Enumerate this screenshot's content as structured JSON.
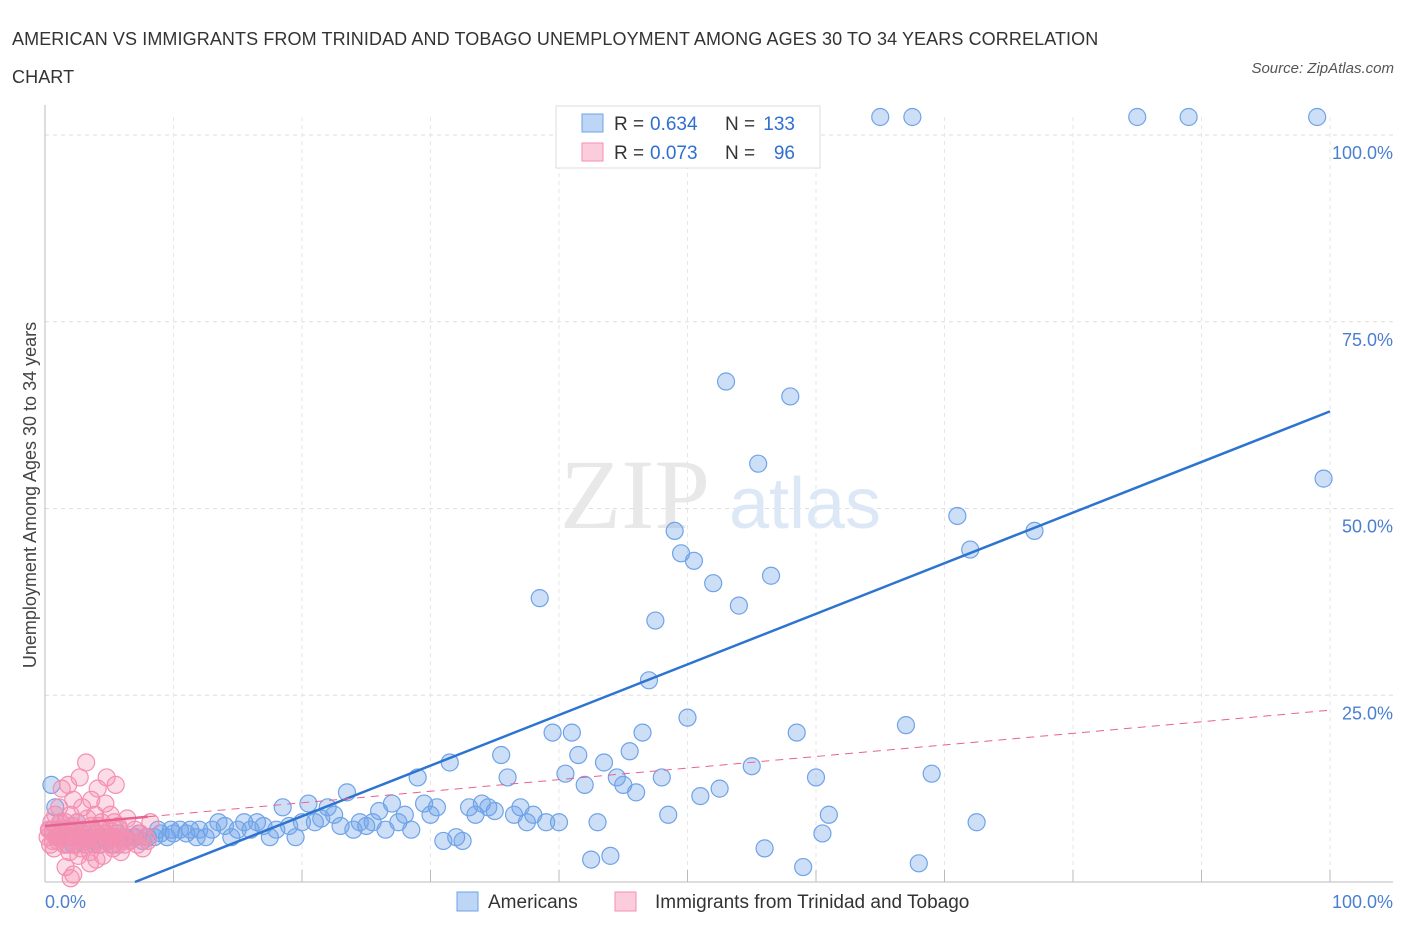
{
  "title": "AMERICAN VS IMMIGRANTS FROM TRINIDAD AND TOBAGO UNEMPLOYMENT AMONG AGES 30 TO 34 YEARS CORRELATION CHART",
  "source": "Source: ZipAtlas.com",
  "watermark": {
    "zip": "ZIP",
    "atlas": "atlas"
  },
  "chart_data": {
    "type": "scatter",
    "ylabel": "Unemployment Among Ages 30 to 34 years",
    "xlim": [
      0,
      100
    ],
    "ylim": [
      0,
      100
    ],
    "x_tick_labels": [
      "0.0%",
      "100.0%"
    ],
    "y_ticks": [
      25,
      50,
      75,
      100
    ],
    "y_tick_labels": [
      "25.0%",
      "50.0%",
      "75.0%",
      "100.0%"
    ],
    "grid": true,
    "legend_position": "top-center",
    "series": [
      {
        "name": "Americans",
        "color": "#6fa3e8",
        "line_color": "#2d74d0",
        "R": "0.634",
        "N": "133",
        "trend": {
          "x0": 7,
          "y0": 0,
          "x1": 100,
          "y1": 63
        },
        "points": [
          [
            0.5,
            13
          ],
          [
            0.6,
            7
          ],
          [
            0.8,
            10
          ],
          [
            1,
            6
          ],
          [
            1.2,
            8
          ],
          [
            1.5,
            5
          ],
          [
            1.8,
            7
          ],
          [
            2,
            6
          ],
          [
            2.2,
            5
          ],
          [
            2.5,
            8
          ],
          [
            2.8,
            6
          ],
          [
            3,
            7
          ],
          [
            3.2,
            5
          ],
          [
            3.5,
            6
          ],
          [
            3.8,
            5.5
          ],
          [
            4,
            6.5
          ],
          [
            4.2,
            5
          ],
          [
            4.5,
            6
          ],
          [
            4.8,
            5.5
          ],
          [
            5,
            6
          ],
          [
            5.3,
            5
          ],
          [
            5.6,
            6.5
          ],
          [
            6,
            5.5
          ],
          [
            6.3,
            6
          ],
          [
            6.6,
            5.5
          ],
          [
            7,
            6
          ],
          [
            7.3,
            6.5
          ],
          [
            7.6,
            5.5
          ],
          [
            8,
            6
          ],
          [
            8.5,
            6
          ],
          [
            8.8,
            7
          ],
          [
            9,
            6.5
          ],
          [
            9.5,
            6
          ],
          [
            9.8,
            7
          ],
          [
            10,
            6.5
          ],
          [
            10.5,
            7
          ],
          [
            11,
            6.5
          ],
          [
            11.3,
            7
          ],
          [
            11.8,
            6
          ],
          [
            12,
            7
          ],
          [
            12.5,
            6
          ],
          [
            13,
            7
          ],
          [
            13.5,
            8
          ],
          [
            14,
            7.5
          ],
          [
            14.5,
            6
          ],
          [
            15,
            7
          ],
          [
            15.5,
            8
          ],
          [
            16,
            7
          ],
          [
            16.5,
            8
          ],
          [
            17,
            7.5
          ],
          [
            17.5,
            6
          ],
          [
            18,
            7
          ],
          [
            18.5,
            10
          ],
          [
            19,
            7.5
          ],
          [
            19.5,
            6
          ],
          [
            20,
            8
          ],
          [
            20.5,
            10.5
          ],
          [
            21,
            8
          ],
          [
            21.5,
            8.5
          ],
          [
            22,
            10
          ],
          [
            22.5,
            9
          ],
          [
            23,
            7.5
          ],
          [
            23.5,
            12
          ],
          [
            24,
            7
          ],
          [
            24.5,
            8
          ],
          [
            25,
            7.5
          ],
          [
            25.5,
            8
          ],
          [
            26,
            9.5
          ],
          [
            26.5,
            7
          ],
          [
            27,
            10.5
          ],
          [
            27.5,
            8
          ],
          [
            28,
            9
          ],
          [
            28.5,
            7
          ],
          [
            29,
            14
          ],
          [
            29.5,
            10.5
          ],
          [
            30,
            9
          ],
          [
            30.5,
            10
          ],
          [
            31,
            5.5
          ],
          [
            31.5,
            16
          ],
          [
            32,
            6
          ],
          [
            32.5,
            5.5
          ],
          [
            33,
            10
          ],
          [
            33.5,
            9
          ],
          [
            34,
            10.5
          ],
          [
            34.5,
            10
          ],
          [
            35,
            9.5
          ],
          [
            35.5,
            17
          ],
          [
            36,
            14
          ],
          [
            36.5,
            9
          ],
          [
            37,
            10
          ],
          [
            37.5,
            8
          ],
          [
            38,
            9
          ],
          [
            38.5,
            38
          ],
          [
            39,
            8
          ],
          [
            39.5,
            20
          ],
          [
            40,
            8
          ],
          [
            40.5,
            14.5
          ],
          [
            41,
            20
          ],
          [
            41.5,
            17
          ],
          [
            42,
            13
          ],
          [
            42.5,
            3
          ],
          [
            43,
            8
          ],
          [
            43.5,
            16
          ],
          [
            44,
            3.5
          ],
          [
            44.5,
            14
          ],
          [
            45,
            13
          ],
          [
            45.5,
            17.5
          ],
          [
            46,
            12
          ],
          [
            46.5,
            20
          ],
          [
            47,
            27
          ],
          [
            47.5,
            35
          ],
          [
            48,
            14
          ],
          [
            48.5,
            9
          ],
          [
            49,
            47
          ],
          [
            49.5,
            44
          ],
          [
            50,
            22
          ],
          [
            50.5,
            43
          ],
          [
            51,
            11.5
          ],
          [
            52,
            40
          ],
          [
            52.5,
            12.5
          ],
          [
            53,
            67
          ],
          [
            54,
            37
          ],
          [
            55,
            15.5
          ],
          [
            55.5,
            56
          ],
          [
            56,
            4.5
          ],
          [
            56.5,
            41
          ],
          [
            58,
            65
          ],
          [
            58.5,
            20
          ],
          [
            59,
            2
          ],
          [
            60,
            14
          ],
          [
            60.5,
            6.5
          ],
          [
            61,
            9
          ],
          [
            67,
            21
          ],
          [
            68,
            2.5
          ],
          [
            69,
            14.5
          ],
          [
            71,
            49
          ],
          [
            72,
            44.5
          ],
          [
            72.5,
            8
          ],
          [
            77,
            47
          ],
          [
            99.5,
            54
          ],
          [
            57.5,
            100
          ],
          [
            58,
            100
          ],
          [
            65,
            100
          ],
          [
            67.5,
            100
          ],
          [
            85,
            100
          ],
          [
            89,
            100
          ],
          [
            99,
            100
          ]
        ]
      },
      {
        "name": "Immigrants from Trinidad and Tobago",
        "color": "#f48fb1",
        "line_color": "#e8628f",
        "R": "0.073",
        "N": "96",
        "trend": {
          "x0": 0,
          "y0": 7.5,
          "x1": 100,
          "y1": 23
        },
        "points": [
          [
            0.2,
            6
          ],
          [
            0.3,
            7
          ],
          [
            0.4,
            5
          ],
          [
            0.5,
            8
          ],
          [
            0.6,
            6.5
          ],
          [
            0.7,
            4.5
          ],
          [
            0.8,
            9
          ],
          [
            0.9,
            7
          ],
          [
            1,
            5.5
          ],
          [
            1.1,
            10
          ],
          [
            1.2,
            6
          ],
          [
            1.3,
            12.5
          ],
          [
            1.4,
            7
          ],
          [
            1.5,
            5
          ],
          [
            1.6,
            8
          ],
          [
            1.7,
            6
          ],
          [
            1.8,
            13
          ],
          [
            1.9,
            4
          ],
          [
            2,
            9
          ],
          [
            2.1,
            6.5
          ],
          [
            2.2,
            11
          ],
          [
            2.3,
            7
          ],
          [
            2.4,
            5
          ],
          [
            2.5,
            8
          ],
          [
            2.6,
            6
          ],
          [
            2.7,
            14
          ],
          [
            2.8,
            4.5
          ],
          [
            2.9,
            10
          ],
          [
            3,
            7
          ],
          [
            3.1,
            5.5
          ],
          [
            3.2,
            16
          ],
          [
            3.3,
            8.5
          ],
          [
            3.4,
            6
          ],
          [
            3.5,
            4
          ],
          [
            3.6,
            11
          ],
          [
            3.7,
            7
          ],
          [
            3.8,
            5
          ],
          [
            3.9,
            9
          ],
          [
            4,
            6
          ],
          [
            4.1,
            12.5
          ],
          [
            4.2,
            7.5
          ],
          [
            4.3,
            5
          ],
          [
            4.4,
            8
          ],
          [
            4.5,
            3.5
          ],
          [
            4.6,
            6.5
          ],
          [
            4.7,
            10.5
          ],
          [
            4.8,
            14
          ],
          [
            4.9,
            5.5
          ],
          [
            5,
            7
          ],
          [
            5.1,
            9
          ],
          [
            5.2,
            6
          ],
          [
            5.3,
            4.5
          ],
          [
            5.4,
            8
          ],
          [
            5.5,
            13
          ],
          [
            5.6,
            6
          ],
          [
            5.7,
            5
          ],
          [
            5.8,
            7
          ],
          [
            5.9,
            4
          ],
          [
            6,
            6
          ],
          [
            6.2,
            5
          ],
          [
            6.4,
            8.5
          ],
          [
            6.6,
            5.5
          ],
          [
            6.8,
            6
          ],
          [
            7,
            7
          ],
          [
            7.2,
            5
          ],
          [
            7.4,
            6.5
          ],
          [
            7.6,
            4.5
          ],
          [
            7.8,
            6
          ],
          [
            8,
            5.5
          ],
          [
            8.2,
            8
          ],
          [
            0.4,
            7
          ],
          [
            0.6,
            5.5
          ],
          [
            0.9,
            6
          ],
          [
            1.2,
            8
          ],
          [
            1.5,
            6.5
          ],
          [
            1.8,
            5
          ],
          [
            2.1,
            7.5
          ],
          [
            2.4,
            6
          ],
          [
            2.7,
            5.5
          ],
          [
            3,
            6.5
          ],
          [
            3.3,
            5
          ],
          [
            3.6,
            7.5
          ],
          [
            3.9,
            6
          ],
          [
            4.2,
            5.5
          ],
          [
            4.5,
            7
          ],
          [
            4.8,
            6.5
          ],
          [
            5.1,
            5
          ],
          [
            5.4,
            6
          ],
          [
            5.7,
            7.5
          ],
          [
            6,
            5.5
          ],
          [
            1.6,
            2
          ],
          [
            2.2,
            1
          ],
          [
            2.0,
            0.5
          ],
          [
            3.5,
            2.5
          ],
          [
            4.0,
            3
          ],
          [
            2.6,
            3.5
          ]
        ]
      }
    ]
  }
}
